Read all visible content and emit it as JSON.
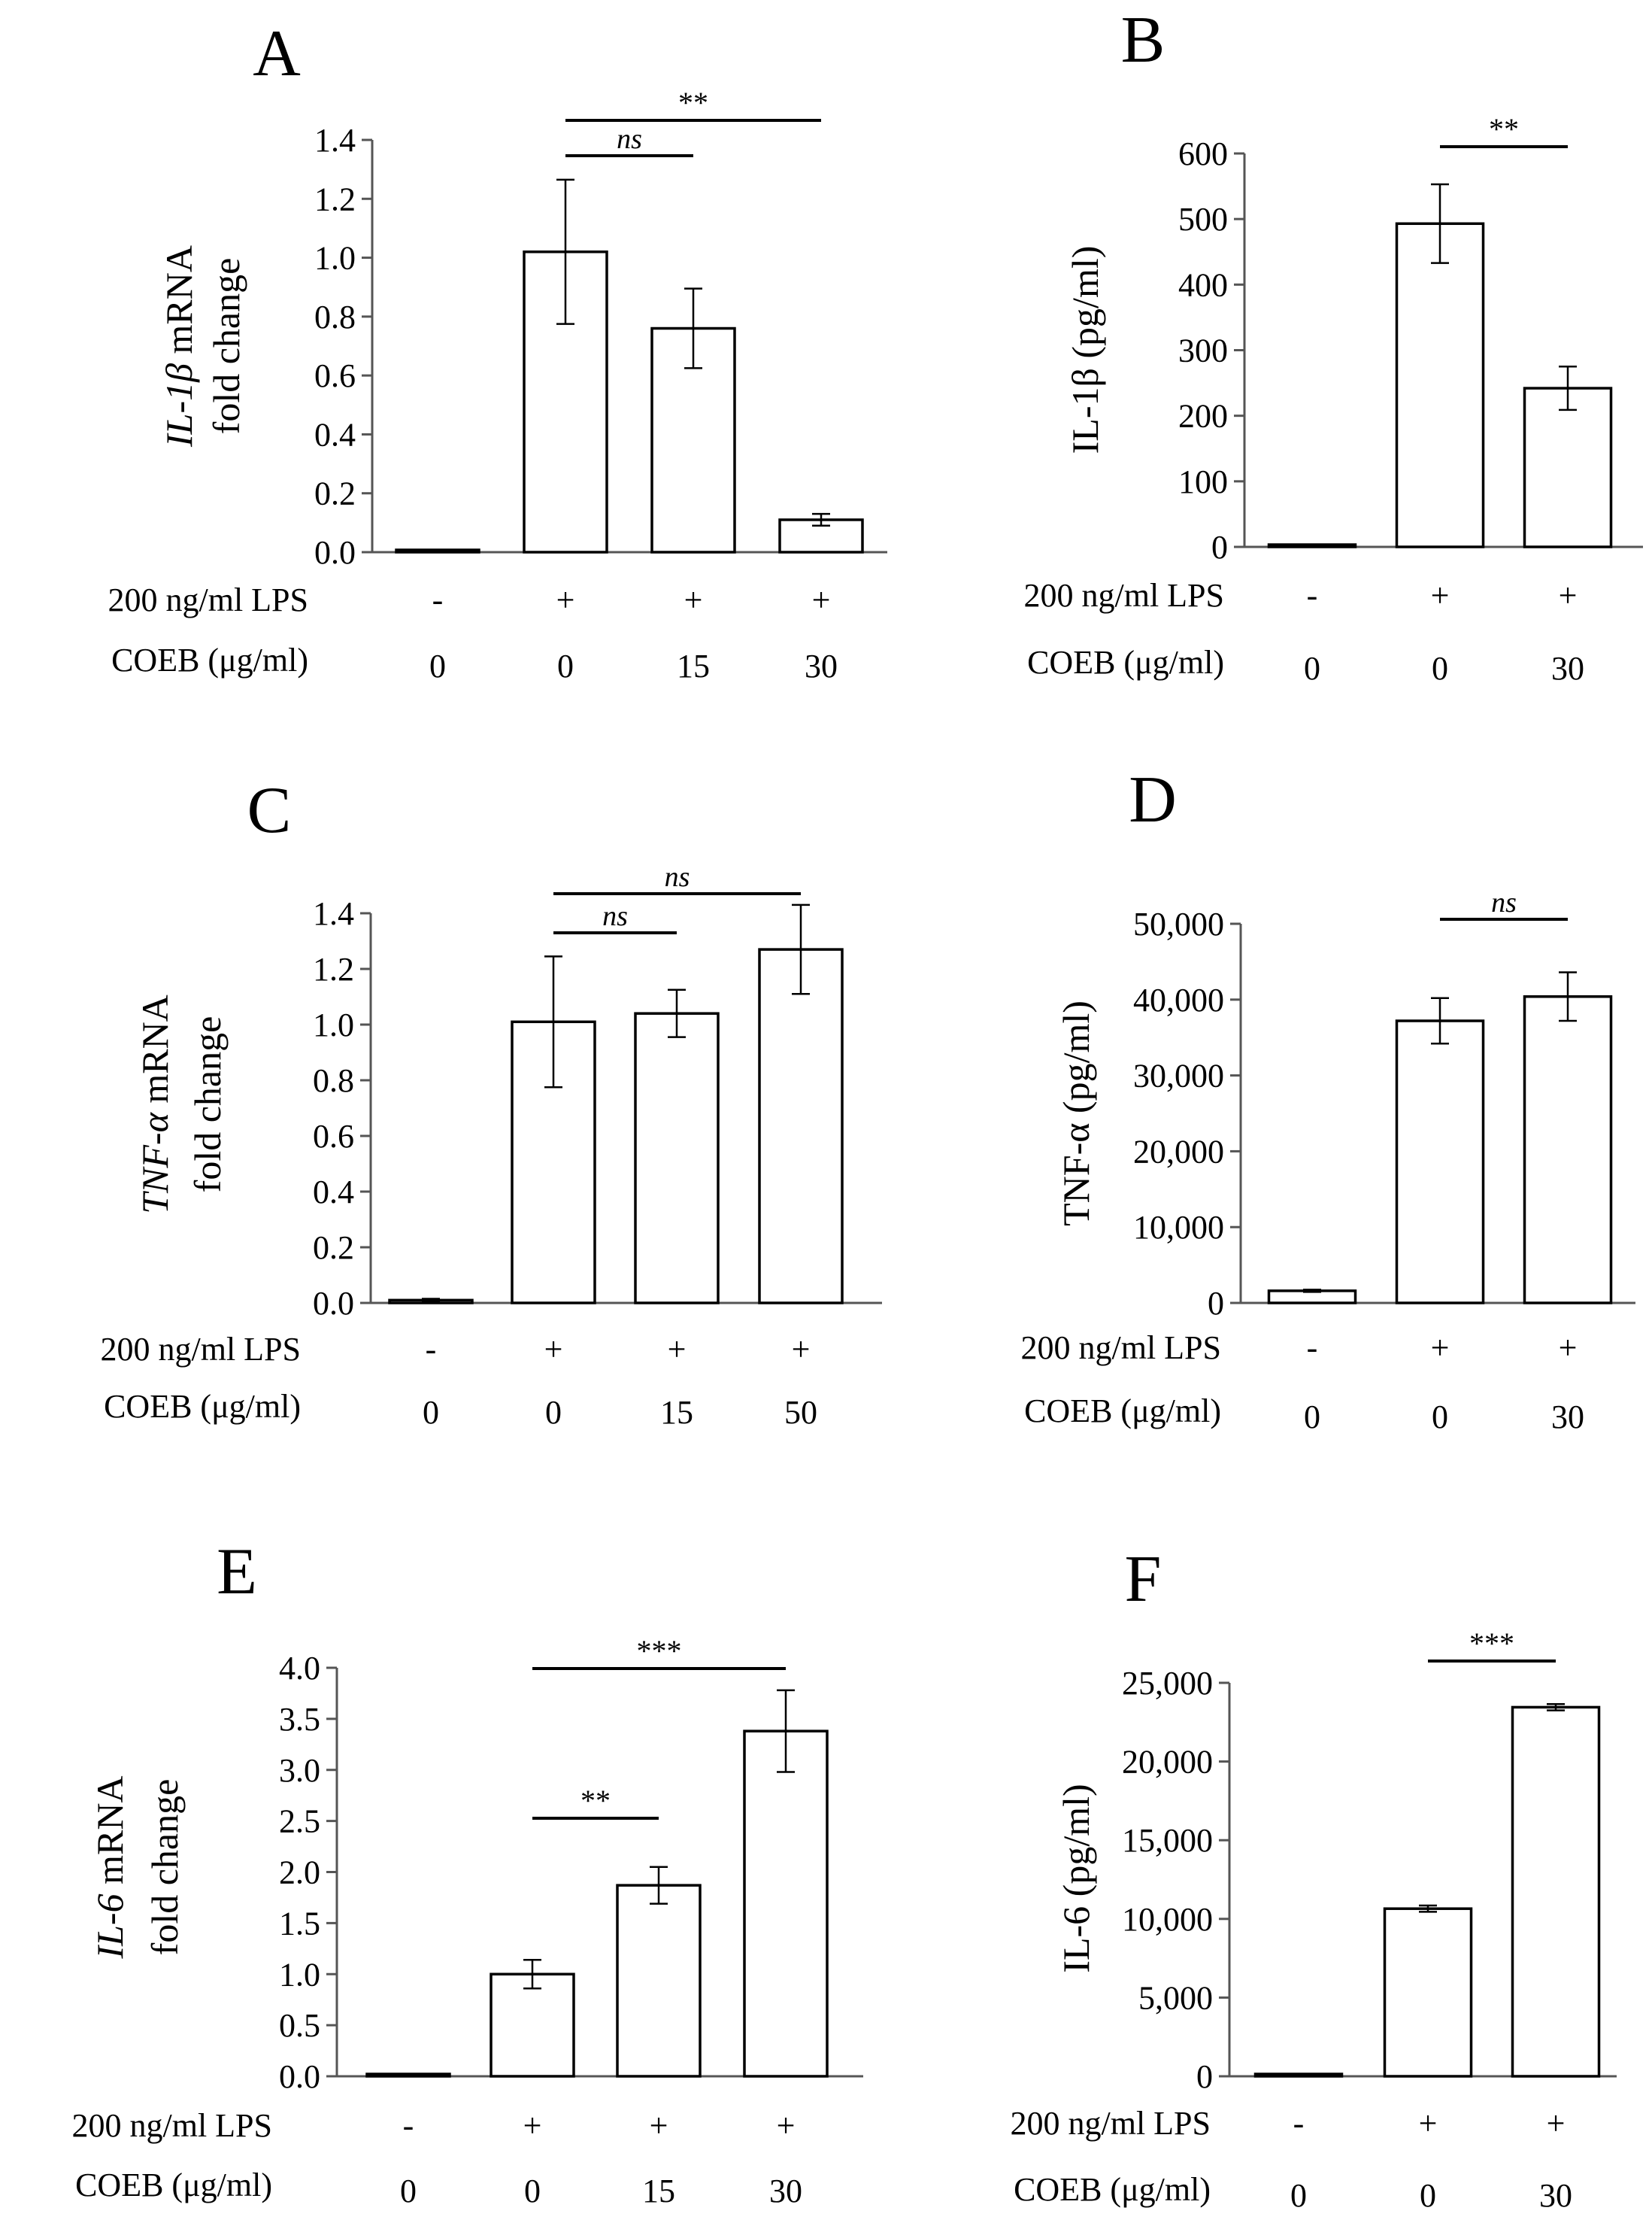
{
  "chart_data": [
    {
      "type": "bar",
      "panel": "A",
      "ylabel_italic": "IL-1β",
      "ylabel_rest": " mRNA",
      "ylabel_line2": "fold change",
      "ylim": [
        0,
        1.4
      ],
      "yticks": [
        "0.0",
        "0.2",
        "0.4",
        "0.6",
        "0.8",
        "1.0",
        "1.2",
        "1.4"
      ],
      "values": [
        0.0,
        1.02,
        0.76,
        0.11
      ],
      "errors": [
        0.0,
        0.245,
        0.135,
        0.02
      ],
      "lps_label": "200 ng/ml LPS",
      "lps": [
        "-",
        "+",
        "+",
        "+"
      ],
      "coeb_label": "COEB (μg/ml)",
      "coeb": [
        "0",
        "0",
        "15",
        "30"
      ],
      "significance": [
        {
          "from": 1,
          "to": 2,
          "label": "ns",
          "italic": true,
          "level": 0
        },
        {
          "from": 1,
          "to": 3,
          "label": "**",
          "italic": false,
          "level": 1
        }
      ]
    },
    {
      "type": "bar",
      "panel": "B",
      "ylabel_italic": "",
      "ylabel_rest": "IL-1β (pg/ml)",
      "ylabel_line2": "",
      "ylim": [
        0,
        600
      ],
      "yticks": [
        "0",
        "100",
        "200",
        "300",
        "400",
        "500",
        "600"
      ],
      "values": [
        0,
        493,
        242
      ],
      "errors": [
        0,
        60,
        33
      ],
      "lps_label": "200 ng/ml LPS",
      "lps": [
        "-",
        "+",
        "+"
      ],
      "coeb_label": "COEB (μg/ml)",
      "coeb": [
        "0",
        "0",
        "30"
      ],
      "significance": [
        {
          "from": 1,
          "to": 2,
          "label": "**",
          "italic": false,
          "level": 0
        }
      ]
    },
    {
      "type": "bar",
      "panel": "C",
      "ylabel_italic": "TNF-α",
      "ylabel_rest": " mRNA",
      "ylabel_line2": "fold change",
      "ylim": [
        0,
        1.4
      ],
      "yticks": [
        "0.0",
        "0.2",
        "0.4",
        "0.6",
        "0.8",
        "1.0",
        "1.2",
        "1.4"
      ],
      "values": [
        0.01,
        1.01,
        1.04,
        1.27
      ],
      "errors": [
        0.005,
        0.235,
        0.085,
        0.16
      ],
      "lps_label": "200 ng/ml LPS",
      "lps": [
        "-",
        "+",
        "+",
        "+"
      ],
      "coeb_label": "COEB (μg/ml)",
      "coeb": [
        "0",
        "0",
        "15",
        "50"
      ],
      "significance": [
        {
          "from": 1,
          "to": 2,
          "label": "ns",
          "italic": true,
          "level": 0
        },
        {
          "from": 1,
          "to": 3,
          "label": "ns",
          "italic": true,
          "level": 1
        }
      ]
    },
    {
      "type": "bar",
      "panel": "D",
      "ylabel_italic": "",
      "ylabel_rest": "TNF-α (pg/ml)",
      "ylabel_line2": "",
      "ylim": [
        0,
        50000
      ],
      "yticks": [
        "0",
        "10,000",
        "20,000",
        "30,000",
        "40,000",
        "50,000"
      ],
      "values": [
        1600,
        37200,
        40400
      ],
      "errors": [
        150,
        3000,
        3200
      ],
      "lps_label": "200 ng/ml LPS",
      "lps": [
        "-",
        "+",
        "+"
      ],
      "coeb_label": "COEB (μg/ml)",
      "coeb": [
        "0",
        "0",
        "30"
      ],
      "significance": [
        {
          "from": 1,
          "to": 2,
          "label": "ns",
          "italic": true,
          "level": 0
        }
      ]
    },
    {
      "type": "bar",
      "panel": "E",
      "ylabel_italic": "IL-6",
      "ylabel_rest": " mRNA",
      "ylabel_line2": "fold change",
      "ylim": [
        0,
        4.0
      ],
      "yticks": [
        "0.0",
        "0.5",
        "1.0",
        "1.5",
        "2.0",
        "2.5",
        "3.0",
        "3.5",
        "4.0"
      ],
      "values": [
        0.0,
        1.0,
        1.87,
        3.38
      ],
      "errors": [
        0.0,
        0.14,
        0.18,
        0.4
      ],
      "lps_label": "200 ng/ml LPS",
      "lps": [
        "-",
        "+",
        "+",
        "+"
      ],
      "coeb_label": "COEB (μg/ml)",
      "coeb": [
        "0",
        "0",
        "15",
        "30"
      ],
      "significance": [
        {
          "from": 1,
          "to": 2,
          "label": "**",
          "italic": false,
          "level": 0
        },
        {
          "from": 1,
          "to": 3,
          "label": "***",
          "italic": false,
          "level": 1
        }
      ]
    },
    {
      "type": "bar",
      "panel": "F",
      "ylabel_italic": "",
      "ylabel_rest": "IL-6 (pg/ml)",
      "ylabel_line2": "",
      "ylim": [
        0,
        25000
      ],
      "yticks": [
        "0",
        "5,000",
        "10,000",
        "15,000",
        "20,000",
        "25,000"
      ],
      "values": [
        0,
        10650,
        23450
      ],
      "errors": [
        0,
        200,
        200
      ],
      "lps_label": "200 ng/ml LPS",
      "lps": [
        "-",
        "+",
        "+"
      ],
      "coeb_label": "COEB (μg/ml)",
      "coeb": [
        "0",
        "0",
        "30"
      ],
      "significance": [
        {
          "from": 1,
          "to": 2,
          "label": "***",
          "italic": false,
          "level": 0
        }
      ]
    }
  ]
}
